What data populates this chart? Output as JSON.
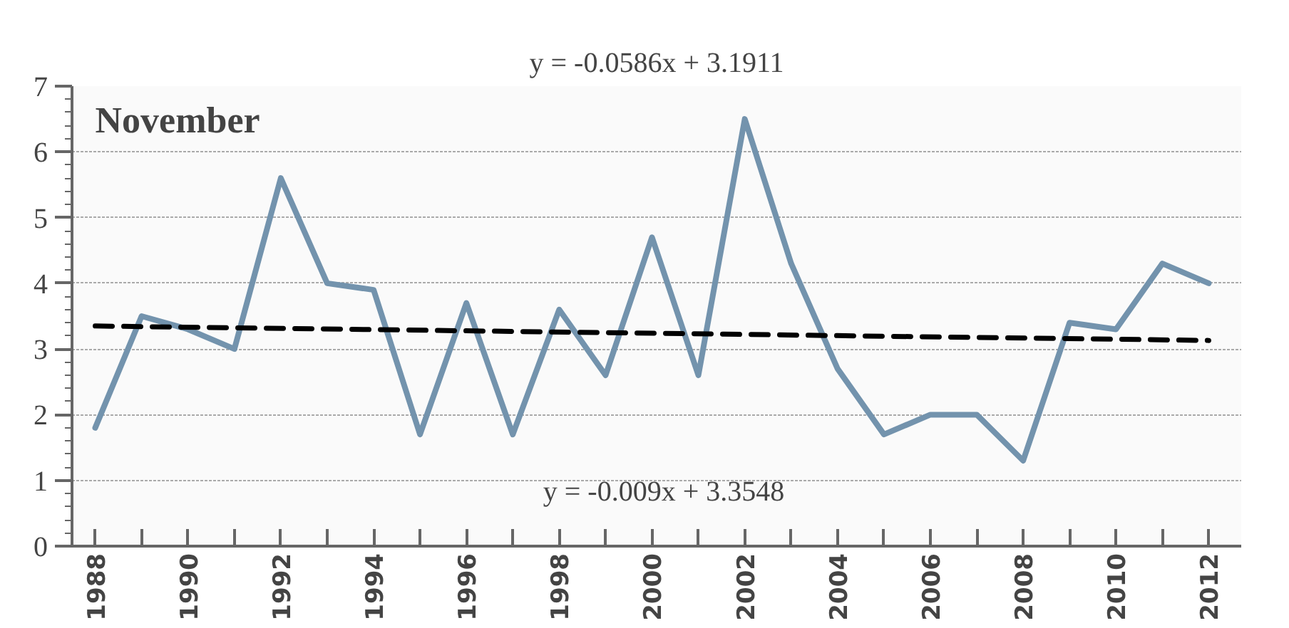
{
  "chart_data": {
    "type": "line",
    "title": "November",
    "x": [
      1988,
      1989,
      1990,
      1991,
      1992,
      1993,
      1994,
      1995,
      1996,
      1997,
      1998,
      1999,
      2000,
      2001,
      2002,
      2003,
      2004,
      2005,
      2006,
      2007,
      2008,
      2009,
      2010,
      2011,
      2012
    ],
    "series": [
      {
        "color": "#7393ad",
        "values": [
          1.8,
          3.5,
          3.3,
          3.0,
          5.6,
          4.0,
          3.9,
          1.7,
          3.7,
          1.7,
          3.6,
          2.6,
          4.7,
          2.6,
          6.5,
          4.3,
          2.7,
          1.7,
          2.0,
          2.0,
          1.3,
          3.4,
          3.3,
          4.3,
          4.0
        ]
      },
      {
        "color": "#000000",
        "x": [
          1988,
          2012
        ],
        "values": [
          3.35,
          3.13
        ],
        "line_style": "dashed"
      }
    ],
    "xlim": [
      1987.5,
      2012.7
    ],
    "ylim": [
      0,
      7
    ],
    "xticks": [
      {
        "value": 1988,
        "label": "1988"
      },
      {
        "value": 1989,
        "label": null
      },
      {
        "value": 1990,
        "label": "1990"
      },
      {
        "value": 1991,
        "label": null
      },
      {
        "value": 1992,
        "label": "1992"
      },
      {
        "value": 1993,
        "label": null
      },
      {
        "value": 1994,
        "label": "1994"
      },
      {
        "value": 1995,
        "label": null
      },
      {
        "value": 1996,
        "label": "1996"
      },
      {
        "value": 1997,
        "label": null
      },
      {
        "value": 1998,
        "label": "1998"
      },
      {
        "value": 1999,
        "label": null
      },
      {
        "value": 2000,
        "label": "2000"
      },
      {
        "value": 2001,
        "label": null
      },
      {
        "value": 2002,
        "label": "2002"
      },
      {
        "value": 2003,
        "label": null
      },
      {
        "value": 2004,
        "label": "2004"
      },
      {
        "value": 2005,
        "label": null
      },
      {
        "value": 2006,
        "label": "2006"
      },
      {
        "value": 2007,
        "label": null
      },
      {
        "value": 2008,
        "label": "2008"
      },
      {
        "value": 2009,
        "label": null
      },
      {
        "value": 2010,
        "label": "2010"
      },
      {
        "value": 2011,
        "label": null
      },
      {
        "value": 2012,
        "label": "2012"
      }
    ],
    "yticks": [
      0,
      1,
      2,
      3,
      4,
      5,
      6,
      7
    ],
    "grid": "y",
    "line_style": "solid",
    "marker": "none",
    "annotations": [
      "y = -0.0586x + 3.1911",
      "y = -0.009x + 3.3548"
    ]
  }
}
